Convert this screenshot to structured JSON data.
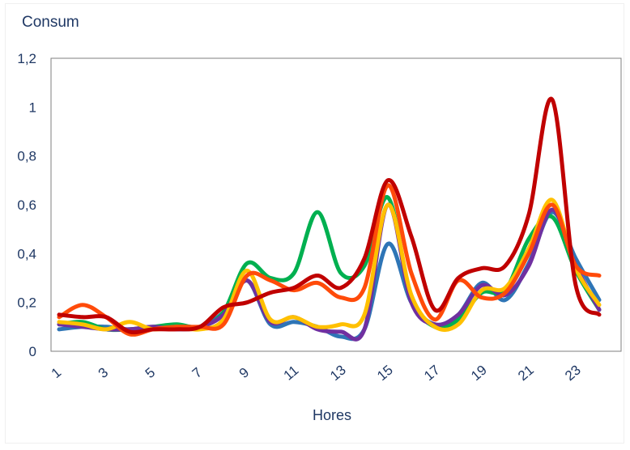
{
  "chart_data": {
    "type": "line",
    "title": "",
    "ylabel": "Consum",
    "xlabel": "Hores",
    "x": [
      1,
      2,
      3,
      4,
      5,
      6,
      7,
      8,
      9,
      10,
      11,
      12,
      13,
      14,
      15,
      16,
      17,
      18,
      19,
      20,
      21,
      22,
      23,
      24
    ],
    "x_tick_labels": [
      "1",
      "3",
      "5",
      "7",
      "9",
      "11",
      "13",
      "15",
      "17",
      "19",
      "21",
      "23"
    ],
    "y_tick_labels": [
      "0",
      "0,2",
      "0,4",
      "0,6",
      "0,8",
      "1",
      "1,2"
    ],
    "xlim": [
      1,
      24
    ],
    "ylim": [
      0,
      1.2
    ],
    "grid": false,
    "legend": false,
    "series": [
      {
        "color": "#2e75b6",
        "values": [
          0.09,
          0.1,
          0.1,
          0.09,
          0.1,
          0.09,
          0.1,
          0.16,
          0.29,
          0.11,
          0.12,
          0.1,
          0.06,
          0.09,
          0.44,
          0.2,
          0.11,
          0.15,
          0.28,
          0.21,
          0.36,
          0.57,
          0.38,
          0.21
        ]
      },
      {
        "color": "#00b050",
        "values": [
          0.11,
          0.12,
          0.09,
          0.09,
          0.1,
          0.11,
          0.1,
          0.16,
          0.36,
          0.3,
          0.32,
          0.57,
          0.32,
          0.35,
          0.63,
          0.22,
          0.1,
          0.13,
          0.24,
          0.25,
          0.46,
          0.55,
          0.33,
          0.17
        ]
      },
      {
        "color": "#7030a0",
        "values": [
          0.11,
          0.1,
          0.09,
          0.09,
          0.1,
          0.09,
          0.1,
          0.15,
          0.29,
          0.12,
          0.14,
          0.09,
          0.08,
          0.09,
          0.6,
          0.2,
          0.11,
          0.15,
          0.27,
          0.23,
          0.35,
          0.58,
          0.35,
          0.17
        ]
      },
      {
        "color": "#ffc000",
        "values": [
          0.12,
          0.11,
          0.09,
          0.12,
          0.09,
          0.1,
          0.09,
          0.13,
          0.33,
          0.13,
          0.14,
          0.1,
          0.11,
          0.15,
          0.6,
          0.23,
          0.1,
          0.11,
          0.25,
          0.26,
          0.42,
          0.62,
          0.34,
          0.19
        ]
      },
      {
        "color": "#ff4b0a",
        "values": [
          0.14,
          0.19,
          0.14,
          0.07,
          0.09,
          0.1,
          0.1,
          0.11,
          0.31,
          0.29,
          0.25,
          0.28,
          0.22,
          0.26,
          0.68,
          0.32,
          0.13,
          0.29,
          0.22,
          0.24,
          0.4,
          0.6,
          0.35,
          0.31
        ]
      },
      {
        "color": "#c00000",
        "values": [
          0.15,
          0.14,
          0.14,
          0.08,
          0.09,
          0.09,
          0.1,
          0.18,
          0.2,
          0.24,
          0.26,
          0.31,
          0.26,
          0.38,
          0.7,
          0.47,
          0.17,
          0.3,
          0.34,
          0.35,
          0.56,
          1.03,
          0.27,
          0.15
        ]
      }
    ]
  }
}
